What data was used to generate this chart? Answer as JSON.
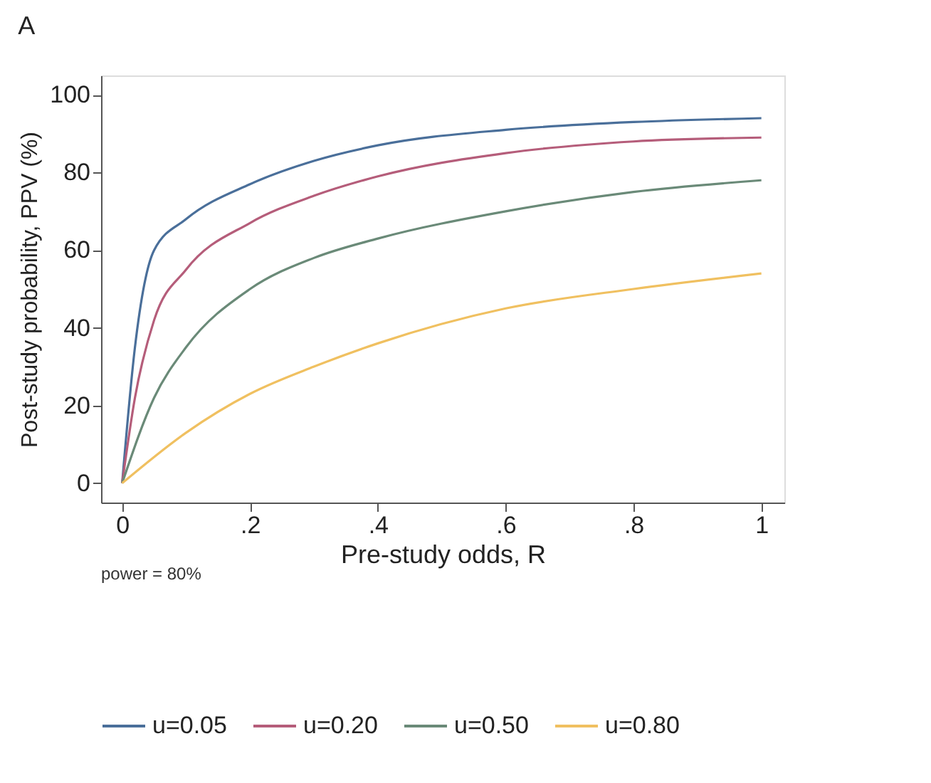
{
  "chart_data": {
    "type": "line",
    "title": "A",
    "xlabel": "Pre-study odds, R",
    "ylabel": "Post-study probability, PPV (%)",
    "annotations": [
      "power = 80%"
    ],
    "xlim": [
      -0.033,
      1.036
    ],
    "ylim": [
      -5,
      105
    ],
    "xticks": [
      0,
      {
        "value": 0.2,
        "label": ".2"
      },
      {
        "value": 0.4,
        "label": ".4"
      },
      {
        "value": 0.6,
        "label": ".6"
      },
      {
        "value": 0.8,
        "label": ".8"
      },
      1
    ],
    "yticks": [
      0,
      20,
      40,
      60,
      80,
      100
    ],
    "grid": false,
    "legend": "bottom",
    "line_style": "solid",
    "marker": "none",
    "series": [
      {
        "name": "u=0.05",
        "color": "#4a6f9a",
        "x": [
          0,
          0.02,
          0.05,
          0.1,
          0.2,
          0.3,
          0.4,
          0.6,
          0.8,
          1
        ],
        "values": [
          0,
          35,
          60,
          68,
          77,
          83,
          87,
          91,
          93,
          94
        ]
      },
      {
        "name": "u=0.20",
        "color": "#b55d7a",
        "x": [
          0,
          0.02,
          0.05,
          0.1,
          0.2,
          0.3,
          0.4,
          0.6,
          0.8,
          1
        ],
        "values": [
          0,
          22,
          42,
          55,
          67,
          74,
          79,
          85,
          88,
          89
        ]
      },
      {
        "name": "u=0.50",
        "color": "#6a8a78",
        "x": [
          0,
          0.05,
          0.1,
          0.2,
          0.3,
          0.4,
          0.6,
          0.8,
          1
        ],
        "values": [
          0,
          22,
          35,
          50,
          58,
          63,
          70,
          75,
          78
        ]
      },
      {
        "name": "u=0.80",
        "color": "#f0c060",
        "x": [
          0,
          0.1,
          0.2,
          0.3,
          0.4,
          0.6,
          0.8,
          1
        ],
        "values": [
          0,
          13,
          23,
          30,
          36,
          45,
          50,
          54
        ]
      }
    ]
  }
}
